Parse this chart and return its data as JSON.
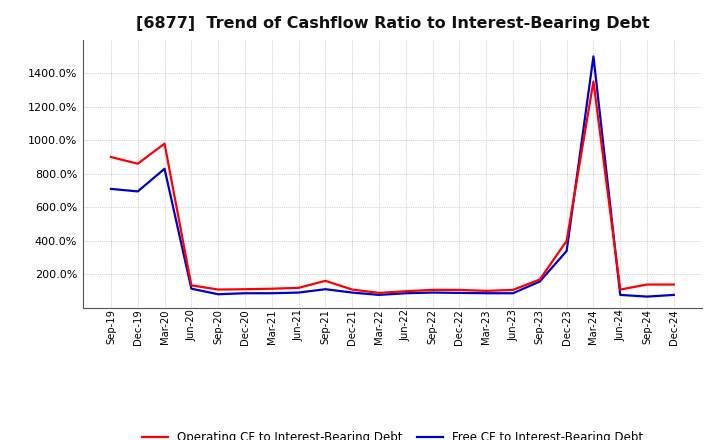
{
  "title": "[6877]  Trend of Cashflow Ratio to Interest-Bearing Debt",
  "title_fontsize": 11.5,
  "background_color": "#ffffff",
  "plot_background": "#ffffff",
  "grid_color": "#888888",
  "operating_cf_color": "#ff0000",
  "free_cf_color": "#0000cc",
  "operating_cf_label": "Operating CF to Interest-Bearing Debt",
  "free_cf_label": "Free CF to Interest-Bearing Debt",
  "line_width": 1.6,
  "xlabels": [
    "Sep-19",
    "Dec-19",
    "Mar-20",
    "Jun-20",
    "Sep-20",
    "Dec-20",
    "Mar-21",
    "Jun-21",
    "Sep-21",
    "Dec-21",
    "Mar-22",
    "Jun-22",
    "Sep-22",
    "Dec-22",
    "Mar-23",
    "Jun-23",
    "Sep-23",
    "Dec-23",
    "Mar-24",
    "Jun-24",
    "Sep-24",
    "Dec-24"
  ],
  "operating_cf": [
    900,
    860,
    980,
    135,
    110,
    112,
    115,
    120,
    162,
    110,
    90,
    100,
    108,
    108,
    102,
    108,
    170,
    400,
    1350,
    110,
    140,
    140
  ],
  "free_cf": [
    710,
    695,
    830,
    115,
    82,
    88,
    88,
    92,
    112,
    92,
    78,
    88,
    92,
    90,
    88,
    88,
    158,
    340,
    1500,
    78,
    68,
    78
  ],
  "ylim": [
    0,
    1600
  ],
  "yticks": [
    200,
    400,
    600,
    800,
    1000,
    1200,
    1400
  ]
}
